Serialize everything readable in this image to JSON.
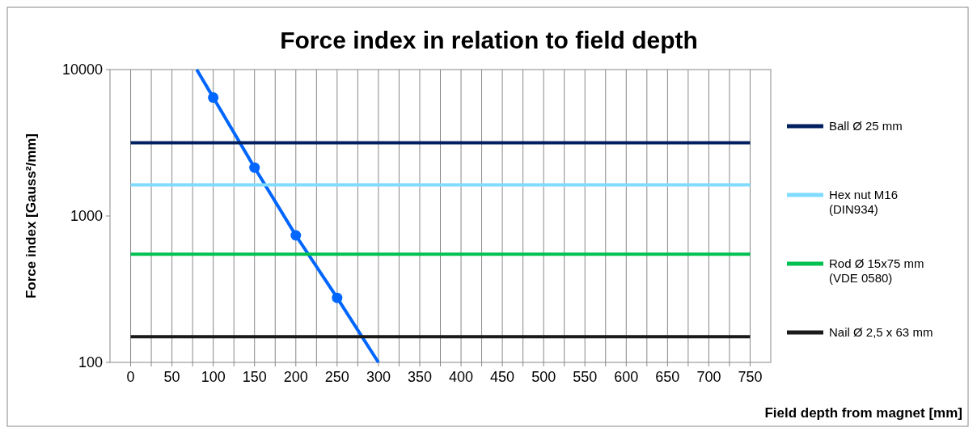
{
  "chart_data": {
    "type": "line",
    "title": "Force index in relation to field depth",
    "xlabel": "Field depth from magnet [mm]",
    "ylabel": "Force index [Gauss²/mm]",
    "log": "y",
    "grid": "x",
    "legend": "right",
    "xlim": [
      -25,
      775
    ],
    "ylim": [
      100,
      10000
    ],
    "yticks": [
      100,
      1000,
      10000
    ],
    "xticks": [
      0,
      {
        "value": 25,
        "label": null
      },
      50,
      {
        "value": 75,
        "label": null
      },
      100,
      {
        "value": 125,
        "label": null
      },
      150,
      {
        "value": 175,
        "label": null
      },
      200,
      {
        "value": 225,
        "label": null
      },
      250,
      {
        "value": 275,
        "label": null
      },
      300,
      {
        "value": 325,
        "label": null
      },
      350,
      {
        "value": 375,
        "label": null
      },
      400,
      {
        "value": 425,
        "label": null
      },
      450,
      {
        "value": 475,
        "label": null
      },
      500,
      {
        "value": 525,
        "label": null
      },
      550,
      {
        "value": 575,
        "label": null
      },
      600,
      {
        "value": 625,
        "label": null
      },
      650,
      {
        "value": 675,
        "label": null
      },
      700,
      {
        "value": 725,
        "label": null
      },
      750
    ],
    "series": [
      {
        "color": "#0066ff",
        "marker": "none",
        "x": [
          80,
          100,
          150,
          200,
          250,
          300
        ],
        "values": [
          10000,
          6440,
          2140,
          737,
          276,
          100
        ]
      },
      {
        "type": "scatter",
        "color": "#0066ff",
        "marker": "circle",
        "x": [
          100,
          150,
          200,
          250
        ],
        "values": [
          6440,
          2140,
          737,
          276
        ]
      },
      {
        "name": "Ball Ø 25 mm",
        "color": "#00205f",
        "marker": "none",
        "x": [
          0,
          750
        ],
        "values": [
          3160,
          3160
        ]
      },
      {
        "name": "Hex nut M16 (DIN934)",
        "color": "#7fdbff",
        "marker": "none",
        "x": [
          0,
          750
        ],
        "values": [
          1630,
          1630
        ]
      },
      {
        "name": "Rod Ø 15x75 mm (VDE 0580)",
        "color": "#00c050",
        "marker": "none",
        "x": [
          0,
          750
        ],
        "values": [
          548,
          548
        ]
      },
      {
        "name": "Nail Ø 2,5 x 63 mm",
        "color": "#1a1a1a",
        "marker": "none",
        "x": [
          0,
          750
        ],
        "values": [
          150,
          150
        ]
      }
    ]
  }
}
